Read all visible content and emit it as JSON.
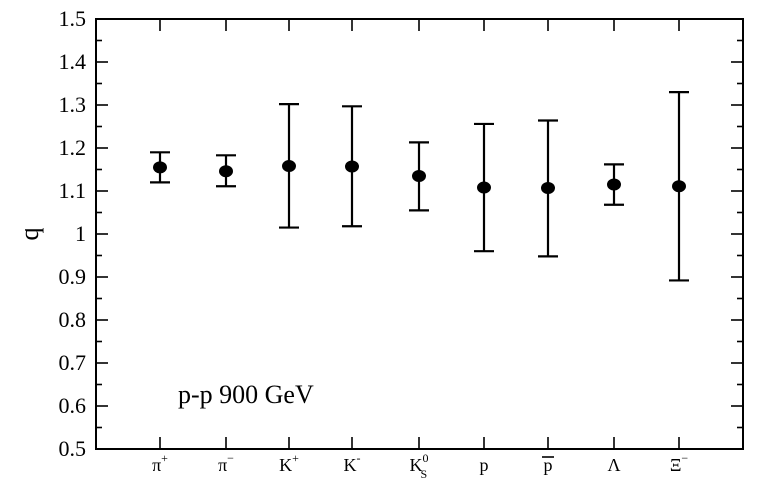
{
  "chart_data": {
    "type": "scatter",
    "title": "",
    "xlabel": "",
    "ylabel": "q",
    "ylim": [
      0.5,
      1.5
    ],
    "yticks": [
      "0.5",
      "0.6",
      "0.7",
      "0.8",
      "0.9",
      "1",
      "1.1",
      "1.2",
      "1.3",
      "1.4",
      "1.5"
    ],
    "annotation": "p-p 900 GeV",
    "grid": false,
    "categories": [
      {
        "base": "π",
        "sup": "+",
        "sub": "",
        "overline": false
      },
      {
        "base": "π",
        "sup": "−",
        "sub": "",
        "overline": false
      },
      {
        "base": "K",
        "sup": "+",
        "sub": "",
        "overline": false
      },
      {
        "base": "K",
        "sup": "-",
        "sub": "",
        "overline": false
      },
      {
        "base": "K",
        "sup": "0",
        "sub": "S",
        "overline": false
      },
      {
        "base": "p",
        "sup": "",
        "sub": "",
        "overline": false
      },
      {
        "base": "p",
        "sup": "",
        "sub": "",
        "overline": true
      },
      {
        "base": "Λ",
        "sup": "",
        "sub": "",
        "overline": false
      },
      {
        "base": "Ξ",
        "sup": "−",
        "sub": "",
        "overline": false
      }
    ],
    "series": [
      {
        "values": [
          1.155,
          1.146,
          1.158,
          1.157,
          1.135,
          1.108,
          1.107,
          1.115,
          1.111
        ],
        "err_low": [
          1.12,
          1.111,
          1.015,
          1.018,
          1.055,
          0.96,
          0.948,
          1.068,
          0.892
        ],
        "err_high": [
          1.19,
          1.183,
          1.302,
          1.297,
          1.213,
          1.256,
          1.264,
          1.162,
          1.33
        ]
      }
    ],
    "colors": {
      "marker": "#000000",
      "axes": "#000000",
      "background": "#ffffff"
    }
  }
}
